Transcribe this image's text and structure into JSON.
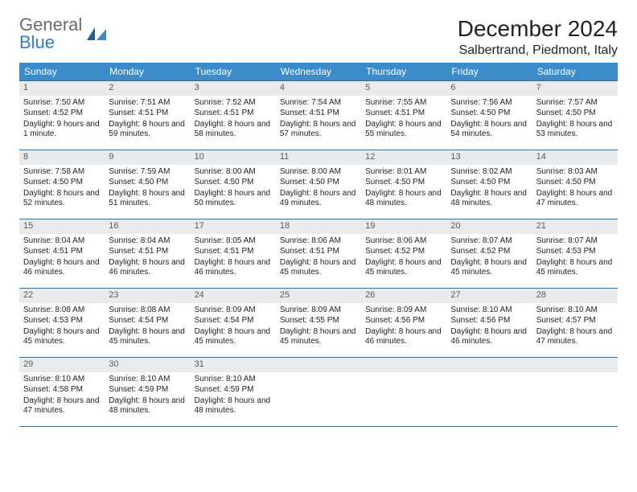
{
  "brand": {
    "word1": "General",
    "word2": "Blue"
  },
  "header": {
    "month_year": "December 2024",
    "location": "Salbertrand, Piedmont, Italy"
  },
  "colors": {
    "header_bg": "#3b8bc9",
    "header_text": "#ffffff",
    "row_border": "#3b6f96",
    "daynum_bg": "#e9eaeb",
    "daynum_text": "#5a5a5a",
    "body_text": "#222222",
    "logo_gray": "#6b6b6b",
    "logo_blue": "#2f7fc2",
    "page_bg": "#ffffff"
  },
  "typography": {
    "title_fs": 28,
    "loc_fs": 16,
    "th_fs": 12,
    "cell_fs": 10,
    "daynum_fs": 11
  },
  "calendar": {
    "columns": [
      "Sunday",
      "Monday",
      "Tuesday",
      "Wednesday",
      "Thursday",
      "Friday",
      "Saturday"
    ],
    "weeks": [
      [
        {
          "n": "1",
          "sr": "Sunrise: 7:50 AM",
          "ss": "Sunset: 4:52 PM",
          "dl": "Daylight: 9 hours and 1 minute."
        },
        {
          "n": "2",
          "sr": "Sunrise: 7:51 AM",
          "ss": "Sunset: 4:51 PM",
          "dl": "Daylight: 8 hours and 59 minutes."
        },
        {
          "n": "3",
          "sr": "Sunrise: 7:52 AM",
          "ss": "Sunset: 4:51 PM",
          "dl": "Daylight: 8 hours and 58 minutes."
        },
        {
          "n": "4",
          "sr": "Sunrise: 7:54 AM",
          "ss": "Sunset: 4:51 PM",
          "dl": "Daylight: 8 hours and 57 minutes."
        },
        {
          "n": "5",
          "sr": "Sunrise: 7:55 AM",
          "ss": "Sunset: 4:51 PM",
          "dl": "Daylight: 8 hours and 55 minutes."
        },
        {
          "n": "6",
          "sr": "Sunrise: 7:56 AM",
          "ss": "Sunset: 4:50 PM",
          "dl": "Daylight: 8 hours and 54 minutes."
        },
        {
          "n": "7",
          "sr": "Sunrise: 7:57 AM",
          "ss": "Sunset: 4:50 PM",
          "dl": "Daylight: 8 hours and 53 minutes."
        }
      ],
      [
        {
          "n": "8",
          "sr": "Sunrise: 7:58 AM",
          "ss": "Sunset: 4:50 PM",
          "dl": "Daylight: 8 hours and 52 minutes."
        },
        {
          "n": "9",
          "sr": "Sunrise: 7:59 AM",
          "ss": "Sunset: 4:50 PM",
          "dl": "Daylight: 8 hours and 51 minutes."
        },
        {
          "n": "10",
          "sr": "Sunrise: 8:00 AM",
          "ss": "Sunset: 4:50 PM",
          "dl": "Daylight: 8 hours and 50 minutes."
        },
        {
          "n": "11",
          "sr": "Sunrise: 8:00 AM",
          "ss": "Sunset: 4:50 PM",
          "dl": "Daylight: 8 hours and 49 minutes."
        },
        {
          "n": "12",
          "sr": "Sunrise: 8:01 AM",
          "ss": "Sunset: 4:50 PM",
          "dl": "Daylight: 8 hours and 48 minutes."
        },
        {
          "n": "13",
          "sr": "Sunrise: 8:02 AM",
          "ss": "Sunset: 4:50 PM",
          "dl": "Daylight: 8 hours and 48 minutes."
        },
        {
          "n": "14",
          "sr": "Sunrise: 8:03 AM",
          "ss": "Sunset: 4:50 PM",
          "dl": "Daylight: 8 hours and 47 minutes."
        }
      ],
      [
        {
          "n": "15",
          "sr": "Sunrise: 8:04 AM",
          "ss": "Sunset: 4:51 PM",
          "dl": "Daylight: 8 hours and 46 minutes."
        },
        {
          "n": "16",
          "sr": "Sunrise: 8:04 AM",
          "ss": "Sunset: 4:51 PM",
          "dl": "Daylight: 8 hours and 46 minutes."
        },
        {
          "n": "17",
          "sr": "Sunrise: 8:05 AM",
          "ss": "Sunset: 4:51 PM",
          "dl": "Daylight: 8 hours and 46 minutes."
        },
        {
          "n": "18",
          "sr": "Sunrise: 8:06 AM",
          "ss": "Sunset: 4:51 PM",
          "dl": "Daylight: 8 hours and 45 minutes."
        },
        {
          "n": "19",
          "sr": "Sunrise: 8:06 AM",
          "ss": "Sunset: 4:52 PM",
          "dl": "Daylight: 8 hours and 45 minutes."
        },
        {
          "n": "20",
          "sr": "Sunrise: 8:07 AM",
          "ss": "Sunset: 4:52 PM",
          "dl": "Daylight: 8 hours and 45 minutes."
        },
        {
          "n": "21",
          "sr": "Sunrise: 8:07 AM",
          "ss": "Sunset: 4:53 PM",
          "dl": "Daylight: 8 hours and 45 minutes."
        }
      ],
      [
        {
          "n": "22",
          "sr": "Sunrise: 8:08 AM",
          "ss": "Sunset: 4:53 PM",
          "dl": "Daylight: 8 hours and 45 minutes."
        },
        {
          "n": "23",
          "sr": "Sunrise: 8:08 AM",
          "ss": "Sunset: 4:54 PM",
          "dl": "Daylight: 8 hours and 45 minutes."
        },
        {
          "n": "24",
          "sr": "Sunrise: 8:09 AM",
          "ss": "Sunset: 4:54 PM",
          "dl": "Daylight: 8 hours and 45 minutes."
        },
        {
          "n": "25",
          "sr": "Sunrise: 8:09 AM",
          "ss": "Sunset: 4:55 PM",
          "dl": "Daylight: 8 hours and 45 minutes."
        },
        {
          "n": "26",
          "sr": "Sunrise: 8:09 AM",
          "ss": "Sunset: 4:56 PM",
          "dl": "Daylight: 8 hours and 46 minutes."
        },
        {
          "n": "27",
          "sr": "Sunrise: 8:10 AM",
          "ss": "Sunset: 4:56 PM",
          "dl": "Daylight: 8 hours and 46 minutes."
        },
        {
          "n": "28",
          "sr": "Sunrise: 8:10 AM",
          "ss": "Sunset: 4:57 PM",
          "dl": "Daylight: 8 hours and 47 minutes."
        }
      ],
      [
        {
          "n": "29",
          "sr": "Sunrise: 8:10 AM",
          "ss": "Sunset: 4:58 PM",
          "dl": "Daylight: 8 hours and 47 minutes."
        },
        {
          "n": "30",
          "sr": "Sunrise: 8:10 AM",
          "ss": "Sunset: 4:59 PM",
          "dl": "Daylight: 8 hours and 48 minutes."
        },
        {
          "n": "31",
          "sr": "Sunrise: 8:10 AM",
          "ss": "Sunset: 4:59 PM",
          "dl": "Daylight: 8 hours and 48 minutes."
        },
        null,
        null,
        null,
        null
      ]
    ]
  }
}
